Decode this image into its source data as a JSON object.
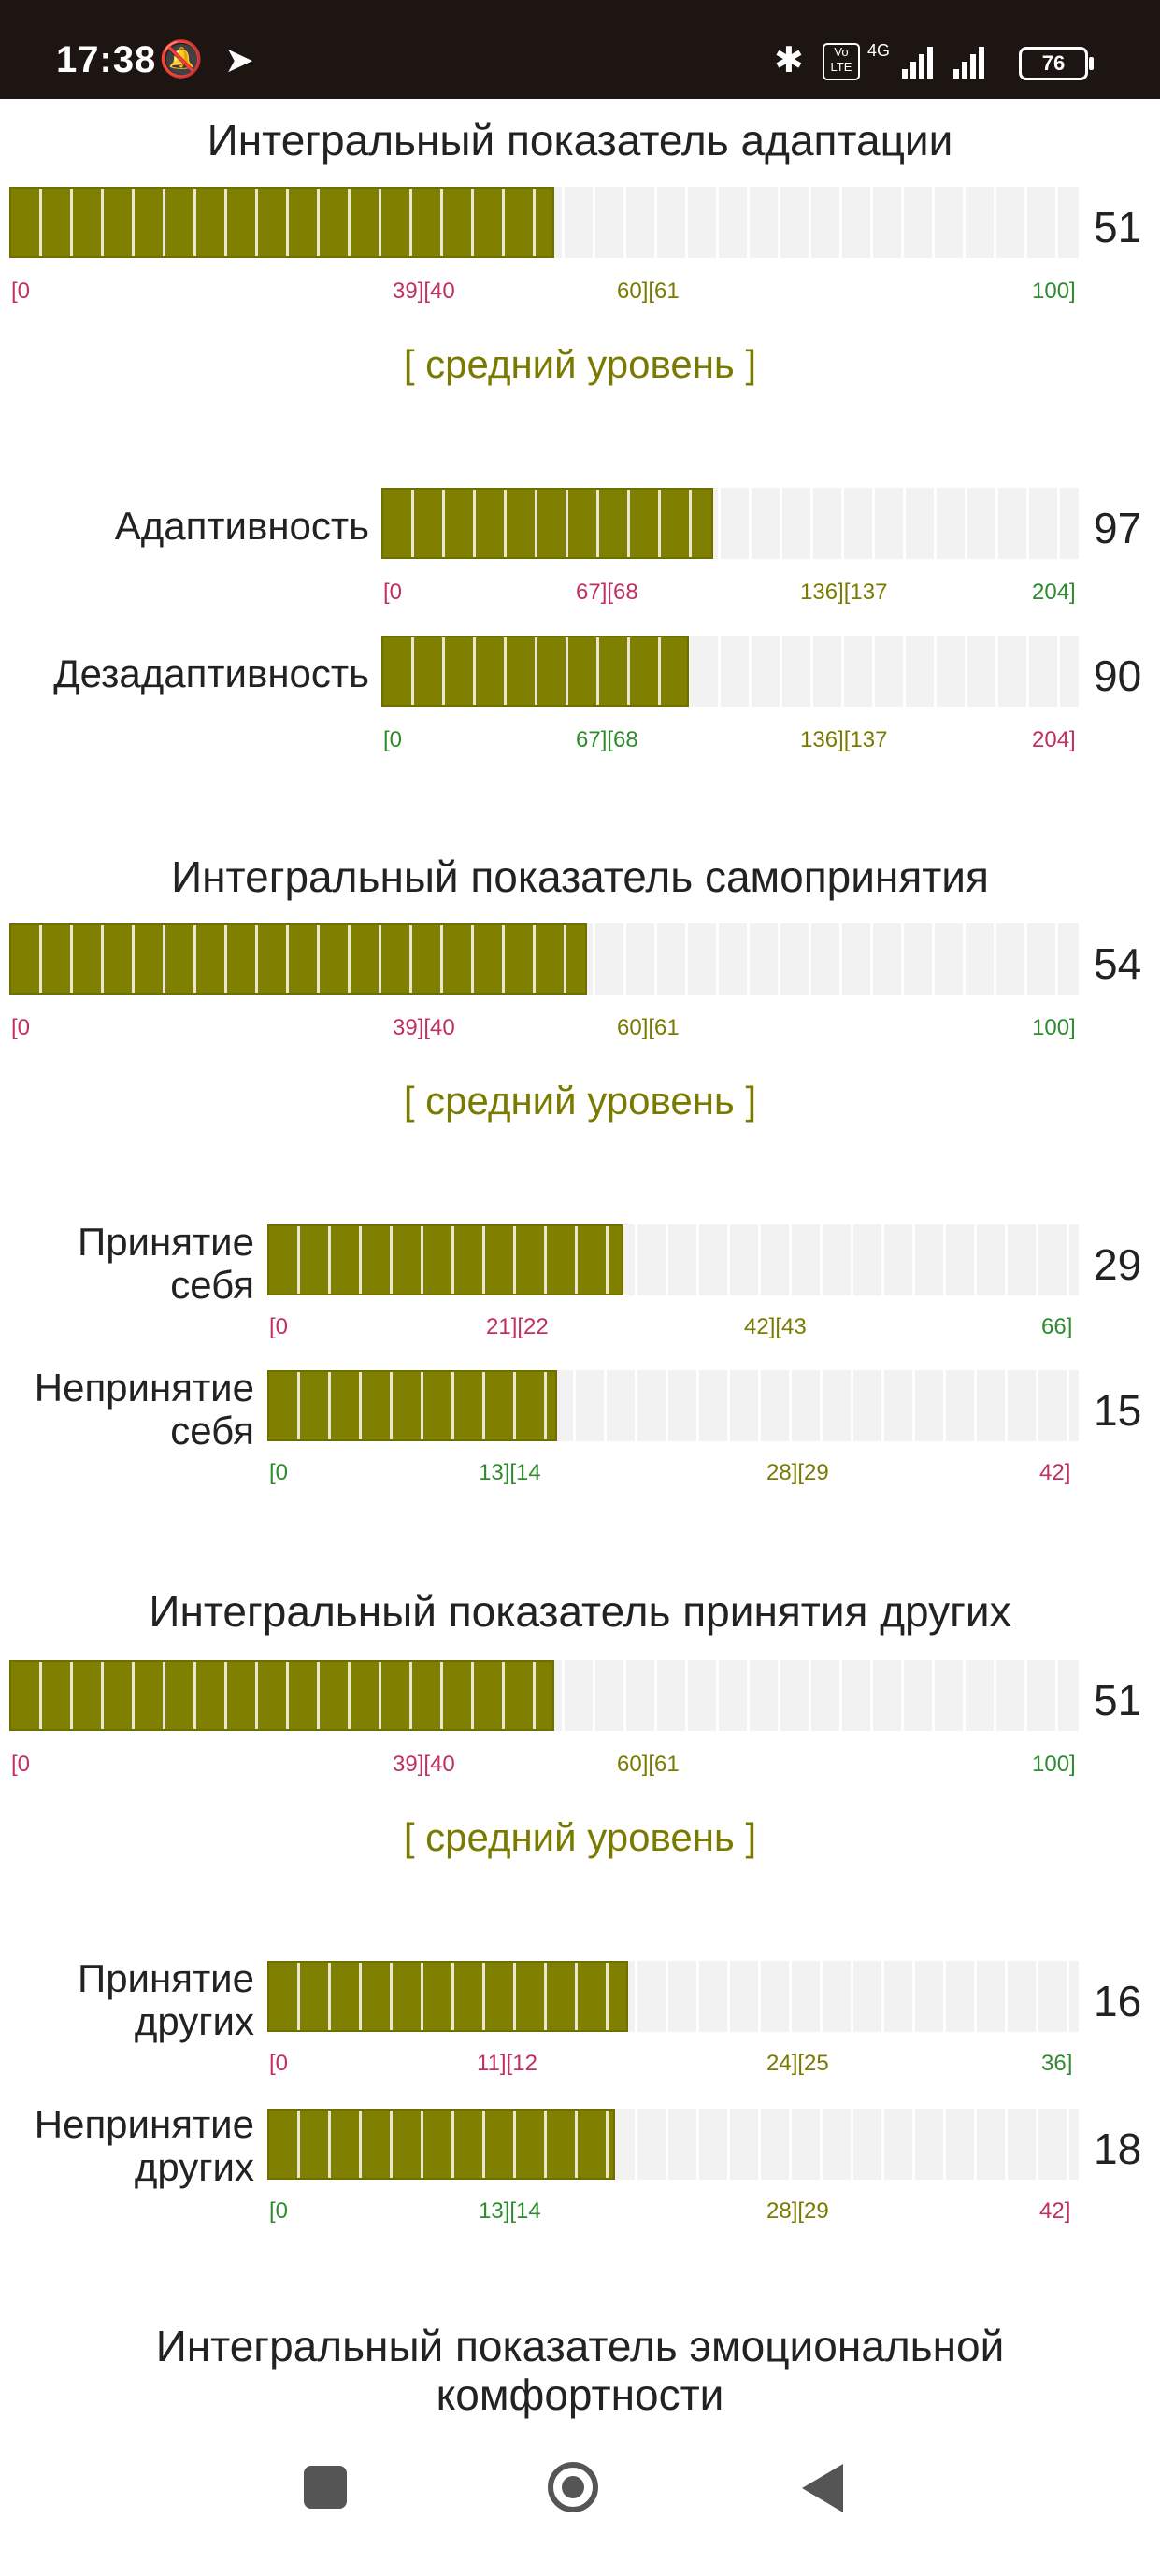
{
  "status": {
    "time": "17:38",
    "battery": "76",
    "net": "4G"
  },
  "sections": [
    {
      "title": "Интегральный показатель адаптации",
      "score": "51",
      "fraction": 0.51,
      "ticks": [
        {
          "t": "[0",
          "c": "red"
        },
        {
          "t": "39][40",
          "c": "red"
        },
        {
          "t": "60][61",
          "c": "olive"
        },
        {
          "t": "100]",
          "c": "green"
        }
      ],
      "level": "[ средний уровень ]"
    },
    {
      "title": "Интегральный показатель самопринятия",
      "score": "54",
      "fraction": 0.54,
      "ticks": [
        {
          "t": "[0",
          "c": "red"
        },
        {
          "t": "39][40",
          "c": "red"
        },
        {
          "t": "60][61",
          "c": "olive"
        },
        {
          "t": "100]",
          "c": "green"
        }
      ],
      "level": "[ средний уровень ]"
    },
    {
      "title": "Интегральный показатель принятия других",
      "score": "51",
      "fraction": 0.51,
      "ticks": [
        {
          "t": "[0",
          "c": "red"
        },
        {
          "t": "39][40",
          "c": "red"
        },
        {
          "t": "60][61",
          "c": "olive"
        },
        {
          "t": "100]",
          "c": "green"
        }
      ],
      "level": "[ средний уровень ]"
    },
    {
      "title": "Интегральный показатель эмоциональной комфортности"
    }
  ],
  "subscales": {
    "adaptivnost": {
      "label": "Адаптивность",
      "score": "97",
      "max": 204,
      "value": 97,
      "ticks": [
        {
          "t": "[0",
          "c": "red"
        },
        {
          "t": "67][68",
          "c": "red"
        },
        {
          "t": "136][137",
          "c": "olive"
        },
        {
          "t": "204]",
          "c": "green"
        }
      ]
    },
    "dezadaptivnost": {
      "label": "Дезадаптивность",
      "score": "90",
      "max": 204,
      "value": 90,
      "ticks": [
        {
          "t": "[0",
          "c": "green"
        },
        {
          "t": "67][68",
          "c": "green"
        },
        {
          "t": "136][137",
          "c": "olive"
        },
        {
          "t": "204]",
          "c": "red"
        }
      ]
    },
    "prinyatie_sebya": {
      "label1": "Принятие",
      "label2": "себя",
      "score": "29",
      "max": 66,
      "value": 29,
      "ticks": [
        {
          "t": "[0",
          "c": "red"
        },
        {
          "t": "21][22",
          "c": "red"
        },
        {
          "t": "42][43",
          "c": "olive"
        },
        {
          "t": "66]",
          "c": "green"
        }
      ]
    },
    "neprinyatie_sebya": {
      "label1": "Непринятие",
      "label2": "себя",
      "score": "15",
      "max": 42,
      "value": 15,
      "ticks": [
        {
          "t": "[0",
          "c": "green"
        },
        {
          "t": "13][14",
          "c": "green"
        },
        {
          "t": "28][29",
          "c": "olive"
        },
        {
          "t": "42]",
          "c": "red"
        }
      ]
    },
    "prinyatie_drugih": {
      "label1": "Принятие",
      "label2": "других",
      "score": "16",
      "max": 36,
      "value": 16,
      "ticks": [
        {
          "t": "[0",
          "c": "red"
        },
        {
          "t": "11][12",
          "c": "red"
        },
        {
          "t": "24][25",
          "c": "olive"
        },
        {
          "t": "36]",
          "c": "green"
        }
      ]
    },
    "neprinyatie_drugih": {
      "label1": "Непринятие",
      "label2": "других",
      "score": "18",
      "max": 42,
      "value": 18,
      "ticks": [
        {
          "t": "[0",
          "c": "green"
        },
        {
          "t": "13][14",
          "c": "green"
        },
        {
          "t": "28][29",
          "c": "olive"
        },
        {
          "t": "42]",
          "c": "red"
        }
      ]
    }
  },
  "colors": {
    "fill": "#808000",
    "track": "#f2f2f2",
    "red": "#c03060",
    "olive": "#7a7a00",
    "green": "#2e8b2e"
  },
  "icons": [
    "mute-icon",
    "telegram-icon",
    "bluetooth-icon",
    "volte-icon",
    "signal-icon",
    "battery-icon",
    "nav-recents-icon",
    "nav-home-icon",
    "nav-back-icon"
  ]
}
